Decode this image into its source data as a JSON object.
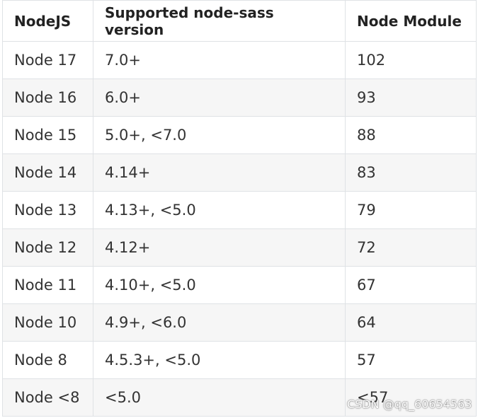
{
  "table": {
    "header": [
      "NodeJS",
      "Supported node-sass version",
      "Node Module"
    ],
    "rows": [
      [
        "Node 17",
        "7.0+",
        "102"
      ],
      [
        "Node 16",
        "6.0+",
        "93"
      ],
      [
        "Node 15",
        "5.0+, <7.0",
        "88"
      ],
      [
        "Node 14",
        "4.14+",
        "83"
      ],
      [
        "Node 13",
        "4.13+, <5.0",
        "79"
      ],
      [
        "Node 12",
        "4.12+",
        "72"
      ],
      [
        "Node 11",
        "4.10+, <5.0",
        "67"
      ],
      [
        "Node 10",
        "4.9+, <6.0",
        "64"
      ],
      [
        "Node 8",
        "4.5.3+, <5.0",
        "57"
      ],
      [
        "Node <8",
        "<5.0",
        "<57"
      ]
    ]
  },
  "watermark": "CSDN @qq_60654563"
}
